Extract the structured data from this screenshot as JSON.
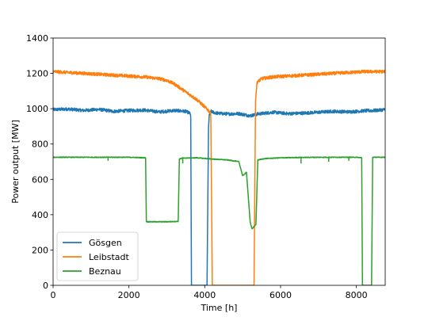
{
  "chart_data": {
    "type": "line",
    "title": "",
    "xlabel": "Time [h]",
    "ylabel": "Power output [MW]",
    "xlim": [
      0,
      8760
    ],
    "ylim": [
      0,
      1400
    ],
    "xticks": [
      0,
      2000,
      4000,
      6000,
      8000
    ],
    "yticks": [
      0,
      200,
      400,
      600,
      800,
      1000,
      1200,
      1400
    ],
    "grid": false,
    "legend_position": "bottom-left",
    "series": [
      {
        "name": "Gösgen",
        "color": "#1f77b4",
        "points": [
          [
            0,
            995
          ],
          [
            400,
            998
          ],
          [
            800,
            990
          ],
          [
            1200,
            996
          ],
          [
            1600,
            985
          ],
          [
            2000,
            990
          ],
          [
            2400,
            992
          ],
          [
            2800,
            982
          ],
          [
            3200,
            990
          ],
          [
            3500,
            985
          ],
          [
            3600,
            975
          ],
          [
            3630,
            960
          ],
          [
            3650,
            0
          ],
          [
            4060,
            0
          ],
          [
            4100,
            900
          ],
          [
            4120,
            960
          ],
          [
            4160,
            985
          ],
          [
            4300,
            975
          ],
          [
            4600,
            970
          ],
          [
            4900,
            972
          ],
          [
            5200,
            960
          ],
          [
            5400,
            970
          ],
          [
            5800,
            980
          ],
          [
            6200,
            972
          ],
          [
            6600,
            975
          ],
          [
            7000,
            980
          ],
          [
            7400,
            985
          ],
          [
            7800,
            982
          ],
          [
            8200,
            988
          ],
          [
            8500,
            990
          ],
          [
            8760,
            995
          ]
        ],
        "noise": 9
      },
      {
        "name": "Leibstadt",
        "color": "#ff7f0e",
        "points": [
          [
            0,
            1210
          ],
          [
            400,
            1205
          ],
          [
            800,
            1200
          ],
          [
            1200,
            1195
          ],
          [
            1600,
            1190
          ],
          [
            2000,
            1185
          ],
          [
            2400,
            1180
          ],
          [
            2800,
            1170
          ],
          [
            3000,
            1160
          ],
          [
            3200,
            1140
          ],
          [
            3400,
            1110
          ],
          [
            3600,
            1080
          ],
          [
            3800,
            1050
          ],
          [
            4000,
            1010
          ],
          [
            4100,
            990
          ],
          [
            4160,
            970
          ],
          [
            4200,
            0
          ],
          [
            5300,
            0
          ],
          [
            5340,
            1050
          ],
          [
            5380,
            1150
          ],
          [
            5500,
            1170
          ],
          [
            5800,
            1180
          ],
          [
            6200,
            1185
          ],
          [
            6600,
            1190
          ],
          [
            7000,
            1195
          ],
          [
            7400,
            1200
          ],
          [
            7800,
            1205
          ],
          [
            8200,
            1210
          ],
          [
            8760,
            1210
          ]
        ],
        "noise": 9
      },
      {
        "name": "Beznau",
        "color": "#2ca02c",
        "points": [
          [
            0,
            725
          ],
          [
            500,
            725
          ],
          [
            1000,
            725
          ],
          [
            1500,
            725
          ],
          [
            2000,
            725
          ],
          [
            2440,
            722
          ],
          [
            2460,
            360
          ],
          [
            3000,
            360
          ],
          [
            3300,
            362
          ],
          [
            3330,
            715
          ],
          [
            3400,
            720
          ],
          [
            3800,
            722
          ],
          [
            4200,
            715
          ],
          [
            4600,
            710
          ],
          [
            4900,
            700
          ],
          [
            5000,
            620
          ],
          [
            5100,
            640
          ],
          [
            5200,
            355
          ],
          [
            5250,
            320
          ],
          [
            5350,
            345
          ],
          [
            5400,
            710
          ],
          [
            5600,
            718
          ],
          [
            6000,
            722
          ],
          [
            6500,
            724
          ],
          [
            7000,
            725
          ],
          [
            7500,
            725
          ],
          [
            8000,
            725
          ],
          [
            8140,
            722
          ],
          [
            8160,
            0
          ],
          [
            8400,
            0
          ],
          [
            8430,
            725
          ],
          [
            8760,
            725
          ]
        ],
        "dips": [
          [
            1450,
            705
          ],
          [
            3420,
            690
          ],
          [
            6540,
            690
          ],
          [
            7270,
            700
          ],
          [
            7800,
            705
          ]
        ],
        "noise": 2
      }
    ]
  }
}
